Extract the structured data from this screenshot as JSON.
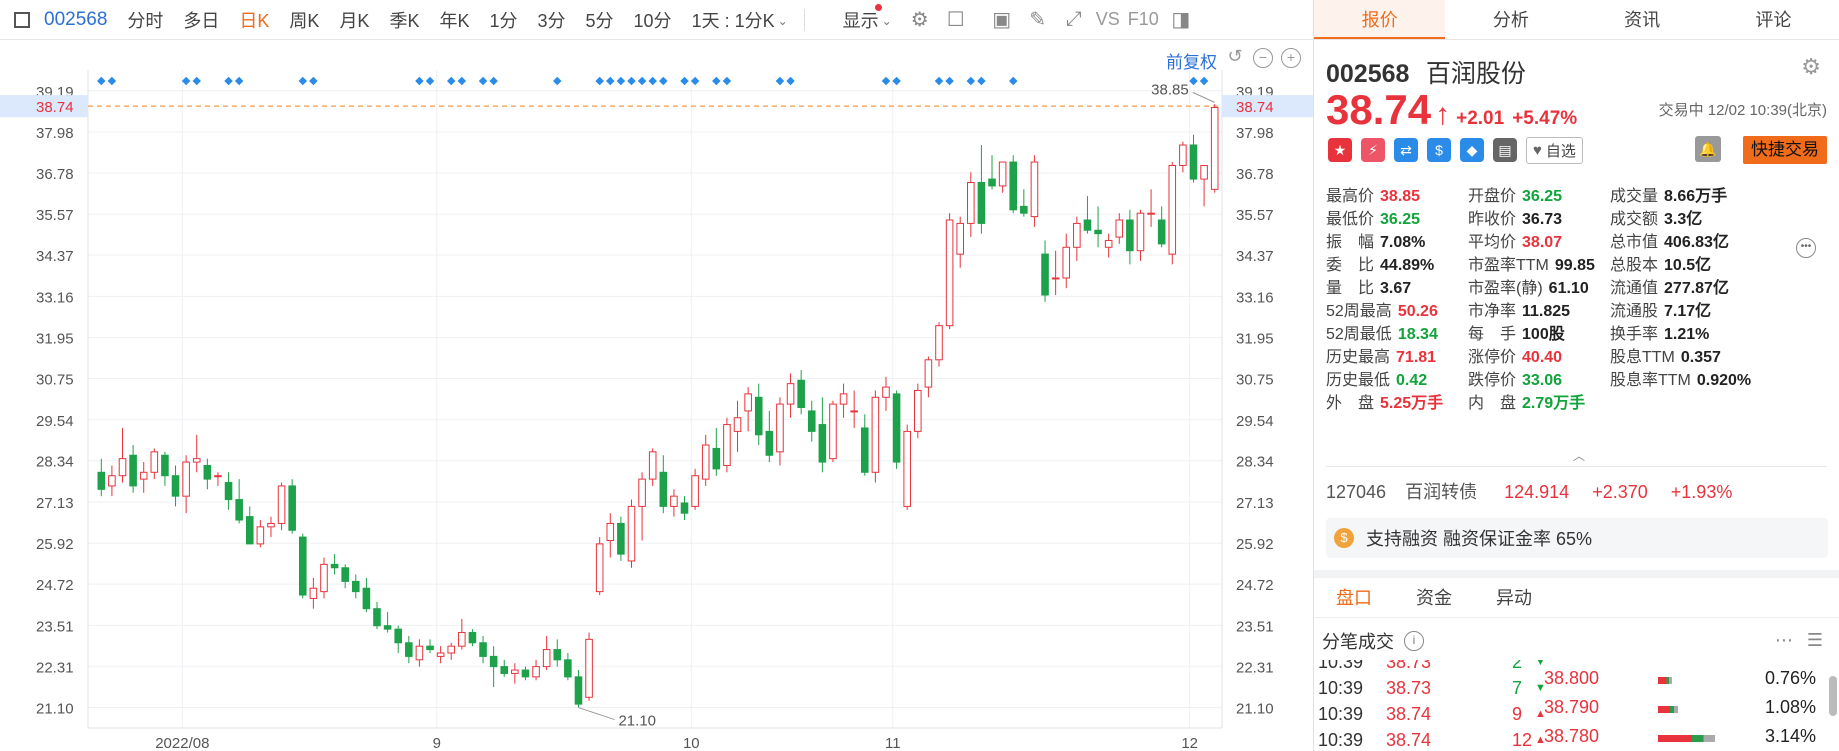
{
  "toolbar": {
    "code": "002568",
    "items": [
      "分时",
      "多日",
      "日K",
      "周K",
      "月K",
      "季K",
      "年K",
      "1分",
      "3分",
      "5分",
      "10分"
    ],
    "active": "日K",
    "period_select": "1天 : 1分K",
    "display": "显示",
    "vs_label": "VS",
    "f10_label": "F10"
  },
  "chart": {
    "adjust_label": "前复权",
    "last_price_label": "38.74",
    "high_label": "38.85",
    "low_label": "21.10",
    "y_ticks": [
      "39.19",
      "37.98",
      "36.78",
      "35.57",
      "34.37",
      "33.16",
      "31.95",
      "30.75",
      "29.54",
      "28.34",
      "27.13",
      "25.92",
      "24.72",
      "23.51",
      "22.31",
      "21.10"
    ],
    "x_labels": [
      "2022/08",
      "9",
      "10",
      "11",
      "12"
    ]
  },
  "chart_data": {
    "type": "candlestick",
    "ylim": [
      20.5,
      39.8
    ],
    "last_price": 38.74,
    "period_high": 38.85,
    "period_low": 21.1,
    "candles": [
      [
        28.0,
        28.4,
        27.3,
        27.5
      ],
      [
        27.6,
        28.2,
        27.3,
        27.9
      ],
      [
        27.9,
        29.3,
        27.7,
        28.4
      ],
      [
        28.5,
        28.8,
        27.4,
        27.6
      ],
      [
        27.8,
        28.3,
        27.4,
        28.0
      ],
      [
        28.0,
        28.7,
        27.8,
        28.6
      ],
      [
        28.5,
        28.6,
        27.6,
        27.9
      ],
      [
        27.9,
        28.2,
        27.0,
        27.3
      ],
      [
        27.3,
        28.5,
        26.8,
        28.3
      ],
      [
        28.3,
        29.1,
        28.0,
        28.4
      ],
      [
        28.2,
        28.4,
        27.5,
        27.8
      ],
      [
        27.9,
        28.0,
        27.6,
        27.9
      ],
      [
        27.7,
        28.0,
        26.9,
        27.2
      ],
      [
        27.2,
        27.8,
        26.5,
        26.6
      ],
      [
        26.7,
        27.0,
        25.9,
        25.9
      ],
      [
        25.9,
        26.6,
        25.8,
        26.4
      ],
      [
        26.4,
        26.7,
        26.1,
        26.5
      ],
      [
        26.5,
        27.7,
        26.3,
        27.6
      ],
      [
        27.6,
        27.8,
        26.2,
        26.3
      ],
      [
        26.1,
        26.2,
        24.3,
        24.4
      ],
      [
        24.3,
        24.9,
        24.0,
        24.6
      ],
      [
        24.5,
        25.5,
        24.3,
        25.3
      ],
      [
        25.3,
        25.6,
        25.0,
        25.2
      ],
      [
        25.2,
        25.3,
        24.6,
        24.8
      ],
      [
        24.8,
        25.0,
        24.3,
        24.5
      ],
      [
        24.6,
        24.9,
        23.9,
        24.0
      ],
      [
        24.0,
        24.2,
        23.4,
        23.5
      ],
      [
        23.5,
        23.9,
        23.3,
        23.4
      ],
      [
        23.4,
        23.5,
        22.7,
        23.0
      ],
      [
        23.0,
        23.2,
        22.4,
        22.6
      ],
      [
        22.5,
        23.1,
        22.3,
        22.9
      ],
      [
        22.9,
        23.1,
        22.7,
        22.8
      ],
      [
        22.6,
        22.9,
        22.4,
        22.7
      ],
      [
        22.7,
        23.0,
        22.5,
        22.9
      ],
      [
        22.9,
        23.7,
        22.8,
        23.3
      ],
      [
        23.3,
        23.4,
        22.9,
        23.0
      ],
      [
        23.0,
        23.2,
        22.4,
        22.6
      ],
      [
        22.6,
        22.9,
        21.7,
        22.3
      ],
      [
        22.3,
        22.5,
        22.0,
        22.1
      ],
      [
        22.1,
        22.4,
        21.8,
        22.2
      ],
      [
        22.2,
        22.3,
        21.9,
        22.0
      ],
      [
        22.0,
        22.5,
        21.9,
        22.3
      ],
      [
        22.3,
        23.2,
        22.2,
        22.8
      ],
      [
        22.8,
        23.1,
        22.3,
        22.5
      ],
      [
        22.5,
        22.7,
        21.9,
        22.0
      ],
      [
        22.0,
        22.2,
        21.1,
        21.2
      ],
      [
        21.4,
        23.3,
        21.3,
        23.1
      ],
      [
        24.5,
        26.1,
        24.4,
        25.9
      ],
      [
        26.0,
        26.8,
        25.5,
        26.5
      ],
      [
        26.5,
        26.7,
        25.4,
        25.6
      ],
      [
        25.4,
        27.2,
        25.2,
        27.0
      ],
      [
        27.0,
        28.0,
        26.0,
        27.8
      ],
      [
        27.8,
        28.7,
        27.6,
        28.6
      ],
      [
        28.0,
        28.5,
        26.8,
        27.0
      ],
      [
        27.0,
        27.5,
        26.7,
        27.3
      ],
      [
        27.1,
        27.3,
        26.6,
        26.8
      ],
      [
        27.0,
        28.1,
        26.9,
        27.9
      ],
      [
        27.8,
        29.1,
        27.6,
        28.8
      ],
      [
        28.7,
        29.3,
        27.9,
        28.1
      ],
      [
        28.2,
        29.6,
        28.0,
        29.4
      ],
      [
        29.2,
        30.1,
        28.6,
        29.6
      ],
      [
        29.8,
        30.5,
        29.2,
        30.3
      ],
      [
        30.2,
        30.6,
        28.8,
        29.1
      ],
      [
        29.2,
        29.8,
        28.3,
        28.5
      ],
      [
        28.6,
        30.2,
        28.2,
        30.0
      ],
      [
        30.0,
        30.9,
        29.6,
        30.6
      ],
      [
        30.7,
        31.0,
        29.7,
        29.9
      ],
      [
        29.8,
        30.1,
        28.9,
        29.2
      ],
      [
        29.4,
        30.2,
        28.0,
        28.3
      ],
      [
        28.4,
        30.1,
        28.3,
        30.0
      ],
      [
        30.0,
        30.6,
        29.6,
        30.3
      ],
      [
        29.8,
        30.4,
        29.3,
        29.8
      ],
      [
        29.3,
        29.7,
        27.9,
        28.0
      ],
      [
        28.0,
        30.4,
        27.7,
        30.2
      ],
      [
        30.2,
        30.8,
        29.8,
        30.5
      ],
      [
        30.3,
        30.4,
        28.1,
        28.3
      ],
      [
        27.0,
        29.4,
        26.9,
        29.2
      ],
      [
        29.2,
        30.6,
        29.0,
        30.4
      ],
      [
        30.5,
        31.4,
        30.2,
        31.3
      ],
      [
        31.3,
        32.4,
        31.1,
        32.3
      ],
      [
        32.3,
        35.6,
        32.2,
        35.4
      ],
      [
        34.4,
        35.5,
        34.0,
        35.3
      ],
      [
        35.3,
        36.8,
        34.9,
        36.5
      ],
      [
        36.5,
        37.6,
        35.0,
        35.3
      ],
      [
        36.6,
        37.3,
        36.3,
        36.4
      ],
      [
        36.4,
        37.1,
        36.2,
        37.1
      ],
      [
        37.1,
        37.3,
        35.6,
        35.7
      ],
      [
        35.8,
        36.3,
        35.5,
        35.6
      ],
      [
        35.5,
        37.3,
        35.2,
        37.1
      ],
      [
        34.4,
        34.8,
        33.0,
        33.2
      ],
      [
        33.7,
        34.5,
        33.2,
        33.7
      ],
      [
        33.7,
        35.0,
        33.4,
        34.6
      ],
      [
        34.6,
        35.5,
        34.2,
        35.3
      ],
      [
        35.4,
        36.1,
        35.0,
        35.1
      ],
      [
        35.1,
        35.8,
        34.6,
        35.0
      ],
      [
        34.6,
        35.0,
        34.3,
        34.8
      ],
      [
        34.9,
        35.6,
        34.7,
        35.4
      ],
      [
        35.4,
        35.7,
        34.1,
        34.5
      ],
      [
        34.5,
        35.7,
        34.2,
        35.6
      ],
      [
        35.6,
        36.3,
        35.2,
        35.6
      ],
      [
        35.4,
        35.8,
        34.6,
        34.7
      ],
      [
        34.4,
        37.1,
        34.1,
        37.0
      ],
      [
        37.0,
        37.7,
        36.8,
        37.6
      ],
      [
        37.6,
        37.9,
        36.5,
        36.6
      ],
      [
        36.6,
        36.9,
        35.8,
        37.0
      ],
      [
        36.3,
        38.8,
        36.2,
        38.7
      ]
    ]
  },
  "panel": {
    "tabs": [
      "报价",
      "分析",
      "资讯",
      "评论"
    ],
    "active_tab": "报价",
    "code": "002568",
    "name": "百润股份",
    "price": "38.74",
    "change": "+2.01",
    "change_pct": "+5.47%",
    "status": "交易中 12/02 10:39(北京)",
    "watch_label": "自选",
    "quick_trade": "快捷交易",
    "stats": [
      [
        {
          "k": "最高价",
          "v": "38.85",
          "c": "red"
        },
        {
          "k": "开盘价",
          "v": "36.25",
          "c": "green"
        },
        {
          "k": "成交量",
          "v": "8.66万手",
          "c": "dark"
        }
      ],
      [
        {
          "k": "最低价",
          "v": "36.25",
          "c": "green"
        },
        {
          "k": "昨收价",
          "v": "36.73",
          "c": "dark"
        },
        {
          "k": "成交额",
          "v": "3.3亿",
          "c": "dark"
        }
      ],
      [
        {
          "k": "振　幅",
          "v": "7.08%",
          "c": "dark"
        },
        {
          "k": "平均价",
          "v": "38.07",
          "c": "red"
        },
        {
          "k": "总市值",
          "v": "406.83亿",
          "c": "dark"
        }
      ],
      [
        {
          "k": "委　比",
          "v": "44.89%",
          "c": "dark"
        },
        {
          "k": "市盈率TTM",
          "v": "99.85",
          "c": "dark"
        },
        {
          "k": "总股本",
          "v": "10.5亿",
          "c": "dark"
        }
      ],
      [
        {
          "k": "量　比",
          "v": "3.67",
          "c": "dark"
        },
        {
          "k": "市盈率(静)",
          "v": "61.10",
          "c": "dark"
        },
        {
          "k": "流通值",
          "v": "277.87亿",
          "c": "dark"
        }
      ],
      [
        {
          "k": "52周最高",
          "v": "50.26",
          "c": "red"
        },
        {
          "k": "市净率",
          "v": "11.825",
          "c": "dark"
        },
        {
          "k": "流通股",
          "v": "7.17亿",
          "c": "dark"
        }
      ],
      [
        {
          "k": "52周最低",
          "v": "18.34",
          "c": "green"
        },
        {
          "k": "每　手",
          "v": "100股",
          "c": "dark"
        },
        {
          "k": "换手率",
          "v": "1.21%",
          "c": "dark"
        }
      ],
      [
        {
          "k": "历史最高",
          "v": "71.81",
          "c": "red"
        },
        {
          "k": "涨停价",
          "v": "40.40",
          "c": "red"
        },
        {
          "k": "股息TTM",
          "v": "0.357",
          "c": "dark"
        }
      ],
      [
        {
          "k": "历史最低",
          "v": "0.42",
          "c": "green"
        },
        {
          "k": "跌停价",
          "v": "33.06",
          "c": "green"
        },
        {
          "k": "股息率TTM",
          "v": "0.920%",
          "c": "dark"
        }
      ],
      [
        {
          "k": "外　盘",
          "v": "5.25万手",
          "c": "red"
        },
        {
          "k": "内　盘",
          "v": "2.79万手",
          "c": "green"
        }
      ]
    ],
    "bond": {
      "code": "127046",
      "name": "百润转债",
      "price": "124.914",
      "change": "+2.370",
      "pct": "+1.93%"
    },
    "margin_text": "支持融资 融资保证金率 65%",
    "subtabs": [
      "盘口",
      "资金",
      "异动"
    ],
    "active_subtab": "盘口",
    "trades_title": "分笔成交",
    "trades": [
      {
        "time": "10:39",
        "price": "38.73",
        "vol": "2",
        "dir": "down"
      },
      {
        "time": "10:39",
        "price": "38.73",
        "vol": "7",
        "dir": "down"
      },
      {
        "time": "10:39",
        "price": "38.74",
        "vol": "9",
        "dir": "up"
      },
      {
        "time": "10:39",
        "price": "38.74",
        "vol": "12",
        "dir": "up"
      }
    ],
    "book": [
      {
        "price": "38.800",
        "pct": "0.76%",
        "frac": 0.24
      },
      {
        "price": "38.790",
        "pct": "1.08%",
        "frac": 0.34
      },
      {
        "price": "38.780",
        "pct": "3.14%",
        "frac": 0.95
      }
    ]
  }
}
